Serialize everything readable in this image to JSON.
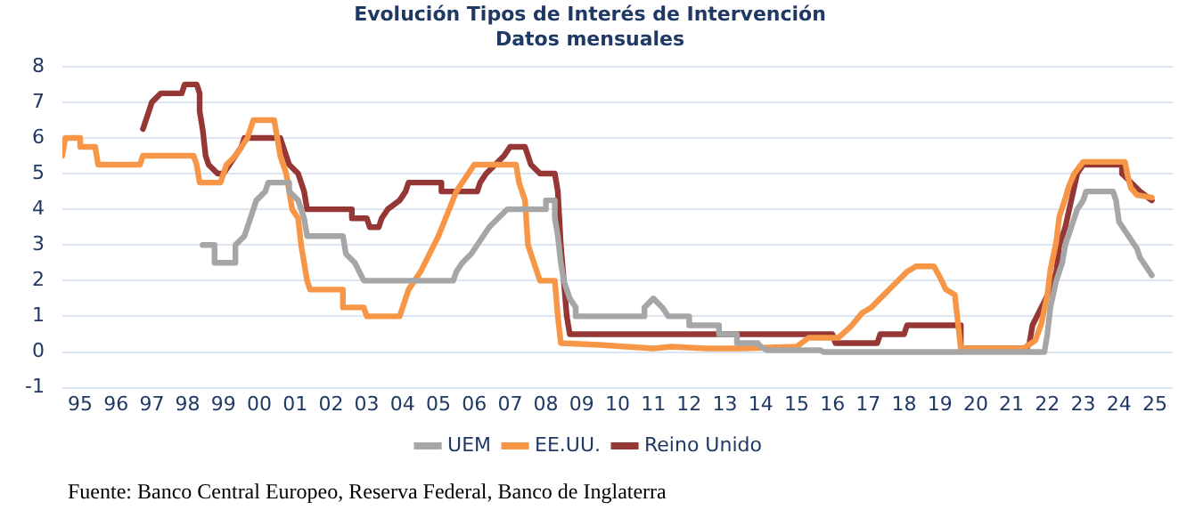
{
  "chart_data": {
    "type": "line",
    "title": "Evolución Tipos de Interés de Intervención",
    "subtitle": "Datos mensuales",
    "xlim": [
      "1995-01",
      "2026-01"
    ],
    "ylim": [
      -1,
      8
    ],
    "yticks": [
      -1,
      0,
      1,
      2,
      3,
      4,
      5,
      6,
      7,
      8
    ],
    "xticks": [
      {
        "value": "1995-07",
        "label": "95"
      },
      {
        "value": "1996-07",
        "label": "96"
      },
      {
        "value": "1997-07",
        "label": "97"
      },
      {
        "value": "1998-07",
        "label": "98"
      },
      {
        "value": "1999-07",
        "label": "99"
      },
      {
        "value": "2000-07",
        "label": "00"
      },
      {
        "value": "2001-07",
        "label": "01"
      },
      {
        "value": "2002-07",
        "label": "02"
      },
      {
        "value": "2003-07",
        "label": "03"
      },
      {
        "value": "2004-07",
        "label": "04"
      },
      {
        "value": "2005-07",
        "label": "05"
      },
      {
        "value": "2006-07",
        "label": "06"
      },
      {
        "value": "2007-07",
        "label": "07"
      },
      {
        "value": "2008-07",
        "label": "08"
      },
      {
        "value": "2009-07",
        "label": "09"
      },
      {
        "value": "2010-07",
        "label": "10"
      },
      {
        "value": "2011-07",
        "label": "11"
      },
      {
        "value": "2012-07",
        "label": "12"
      },
      {
        "value": "2013-07",
        "label": "13"
      },
      {
        "value": "2014-07",
        "label": "14"
      },
      {
        "value": "2015-07",
        "label": "15"
      },
      {
        "value": "2016-07",
        "label": "16"
      },
      {
        "value": "2017-07",
        "label": "17"
      },
      {
        "value": "2018-07",
        "label": "18"
      },
      {
        "value": "2019-07",
        "label": "19"
      },
      {
        "value": "2020-07",
        "label": "20"
      },
      {
        "value": "2021-07",
        "label": "21"
      },
      {
        "value": "2022-07",
        "label": "22"
      },
      {
        "value": "2023-07",
        "label": "23"
      },
      {
        "value": "2024-07",
        "label": "24"
      },
      {
        "value": "2025-07",
        "label": "25"
      }
    ],
    "grid": "y",
    "legend": "bottom",
    "marker": "none",
    "line_style": "solid",
    "annotations": [
      "Fuente: Banco Central Europeo, Reserva Federal, Banco de Inglaterra"
    ],
    "series": [
      {
        "name": "UEM",
        "color": "#a6a6a6",
        "x": [
          "1998-12",
          "1999-04",
          "1999-04",
          "1999-11",
          "1999-11",
          "2000-02",
          "2000-03",
          "2000-04",
          "2000-06",
          "2000-09",
          "2000-10",
          "2001-05",
          "2001-05",
          "2001-08",
          "2001-10",
          "2001-11",
          "2002-11",
          "2002-12",
          "2003-03",
          "2003-06",
          "2005-12",
          "2006-01",
          "2006-03",
          "2006-06",
          "2006-08",
          "2006-10",
          "2006-12",
          "2007-03",
          "2007-06",
          "2008-07",
          "2008-07",
          "2008-10",
          "2008-10",
          "2008-11",
          "2008-12",
          "2009-01",
          "2009-03",
          "2009-05",
          "2009-05",
          "2011-04",
          "2011-04",
          "2011-07",
          "2011-10",
          "2011-12",
          "2012-07",
          "2012-07",
          "2013-05",
          "2013-05",
          "2013-11",
          "2013-11",
          "2014-06",
          "2014-07",
          "2014-09",
          "2016-03",
          "2016-04",
          "2022-06",
          "2022-07",
          "2022-08",
          "2022-10",
          "2022-12",
          "2023-01",
          "2023-03",
          "2023-04",
          "2023-05",
          "2023-07",
          "2023-08",
          "2024-05",
          "2024-06",
          "2024-07",
          "2024-09",
          "2024-11",
          "2025-01",
          "2025-02",
          "2025-04",
          "2025-06"
        ],
        "values": [
          3.0,
          3.0,
          2.5,
          2.5,
          3.0,
          3.25,
          3.5,
          3.75,
          4.25,
          4.5,
          4.75,
          4.75,
          4.5,
          4.25,
          3.75,
          3.25,
          3.25,
          2.75,
          2.5,
          2.0,
          2.0,
          2.25,
          2.5,
          2.75,
          3.0,
          3.25,
          3.5,
          3.75,
          4.0,
          4.0,
          4.25,
          4.25,
          3.75,
          3.25,
          2.5,
          2.0,
          1.5,
          1.25,
          1.0,
          1.0,
          1.25,
          1.5,
          1.25,
          1.0,
          1.0,
          0.75,
          0.75,
          0.5,
          0.5,
          0.25,
          0.25,
          0.15,
          0.05,
          0.05,
          0.0,
          0.0,
          0.5,
          1.25,
          2.0,
          2.5,
          3.0,
          3.5,
          3.75,
          4.0,
          4.25,
          4.5,
          4.5,
          4.25,
          3.65,
          3.4,
          3.15,
          2.9,
          2.65,
          2.4,
          2.15
        ]
      },
      {
        "name": "EE.UU.",
        "color": "#f79646",
        "x": [
          "1995-01",
          "1995-02",
          "1995-07",
          "1995-07",
          "1995-12",
          "1996-01",
          "1997-03",
          "1997-04",
          "1998-09",
          "1998-10",
          "1998-11",
          "1999-06",
          "1999-07",
          "1999-08",
          "1999-11",
          "2000-01",
          "2000-03",
          "2000-05",
          "2000-12",
          "2001-01",
          "2001-02",
          "2001-04",
          "2001-05",
          "2001-06",
          "2001-08",
          "2001-09",
          "2001-10",
          "2001-11",
          "2001-12",
          "2002-11",
          "2002-11",
          "2003-06",
          "2003-07",
          "2004-06",
          "2004-07",
          "2004-09",
          "2005-01",
          "2005-07",
          "2006-01",
          "2006-07",
          "2007-09",
          "2007-10",
          "2007-11",
          "2007-12",
          "2008-01",
          "2008-04",
          "2008-05",
          "2008-10",
          "2008-11",
          "2008-12",
          "2010-01",
          "2011-07",
          "2012-01",
          "2013-01",
          "2014-01",
          "2015-07",
          "2015-11",
          "2016-09",
          "2017-01",
          "2017-05",
          "2017-08",
          "2017-11",
          "2018-02",
          "2018-05",
          "2018-08",
          "2018-11",
          "2019-05",
          "2019-07",
          "2019-09",
          "2019-12",
          "2020-02",
          "2021-11",
          "2022-03",
          "2022-05",
          "2022-07",
          "2022-08",
          "2022-10",
          "2022-11",
          "2023-01",
          "2023-02",
          "2023-04",
          "2023-07",
          "2024-09",
          "2024-10",
          "2024-11",
          "2025-01",
          "2025-06"
        ],
        "values": [
          5.5,
          6.0,
          6.0,
          5.75,
          5.75,
          5.25,
          5.25,
          5.5,
          5.5,
          5.25,
          4.75,
          4.75,
          5.0,
          5.25,
          5.5,
          5.75,
          6.0,
          6.5,
          6.5,
          6.0,
          5.5,
          5.0,
          4.5,
          4.0,
          3.75,
          3.0,
          2.5,
          2.0,
          1.75,
          1.75,
          1.25,
          1.25,
          1.0,
          1.0,
          1.25,
          1.75,
          2.25,
          3.25,
          4.5,
          5.25,
          5.25,
          4.75,
          4.5,
          4.25,
          3.0,
          2.25,
          2.0,
          2.0,
          1.0,
          0.25,
          0.2,
          0.1,
          0.15,
          0.1,
          0.1,
          0.15,
          0.4,
          0.4,
          0.7,
          1.1,
          1.25,
          1.5,
          1.75,
          2.0,
          2.25,
          2.4,
          2.4,
          2.1,
          1.75,
          1.6,
          0.1,
          0.1,
          0.33,
          0.8,
          1.6,
          2.3,
          3.1,
          3.8,
          4.3,
          4.6,
          5.0,
          5.33,
          5.33,
          4.9,
          4.6,
          4.4,
          4.33
        ]
      },
      {
        "name": "Reino Unido",
        "color": "#953735",
        "x": [
          "1997-04",
          "1997-06",
          "1997-07",
          "1997-10",
          "1998-05",
          "1998-06",
          "1998-10",
          "1998-11",
          "1998-11",
          "1998-12",
          "1999-01",
          "1999-02",
          "1999-05",
          "1999-07",
          "1999-09",
          "1999-11",
          "2000-01",
          "2000-02",
          "2001-02",
          "2001-03",
          "2001-04",
          "2001-05",
          "2001-08",
          "2001-09",
          "2001-10",
          "2001-11",
          "2003-02",
          "2003-02",
          "2003-07",
          "2003-08",
          "2003-11",
          "2003-12",
          "2004-02",
          "2004-06",
          "2004-08",
          "2004-09",
          "2005-08",
          "2005-08",
          "2006-08",
          "2006-09",
          "2006-11",
          "2007-02",
          "2007-05",
          "2007-07",
          "2007-12",
          "2008-01",
          "2008-02",
          "2008-05",
          "2008-10",
          "2008-11",
          "2008-12",
          "2009-01",
          "2009-02",
          "2009-03",
          "2016-07",
          "2016-08",
          "2017-10",
          "2017-11",
          "2018-07",
          "2018-08",
          "2020-02",
          "2020-02",
          "2021-12",
          "2022-01",
          "2022-02",
          "2022-05",
          "2022-08",
          "2022-10",
          "2022-11",
          "2023-01",
          "2023-03",
          "2023-05",
          "2023-07",
          "2024-08",
          "2024-08",
          "2024-11",
          "2025-02",
          "2025-06"
        ],
        "values": [
          6.25,
          6.75,
          7.0,
          7.25,
          7.25,
          7.5,
          7.5,
          7.25,
          6.75,
          6.25,
          5.5,
          5.25,
          5.0,
          5.0,
          5.25,
          5.5,
          5.75,
          6.0,
          6.0,
          5.75,
          5.5,
          5.25,
          5.0,
          4.75,
          4.5,
          4.0,
          4.0,
          3.75,
          3.75,
          3.5,
          3.5,
          3.75,
          4.0,
          4.25,
          4.5,
          4.75,
          4.75,
          4.5,
          4.5,
          4.75,
          5.0,
          5.25,
          5.5,
          5.75,
          5.75,
          5.5,
          5.25,
          5.0,
          5.0,
          4.5,
          3.0,
          2.0,
          1.0,
          0.5,
          0.5,
          0.25,
          0.25,
          0.5,
          0.5,
          0.75,
          0.75,
          0.1,
          0.1,
          0.25,
          0.75,
          1.25,
          1.75,
          2.25,
          3.0,
          3.5,
          4.25,
          5.0,
          5.25,
          5.25,
          5.0,
          4.75,
          4.5,
          4.25
        ]
      }
    ]
  }
}
